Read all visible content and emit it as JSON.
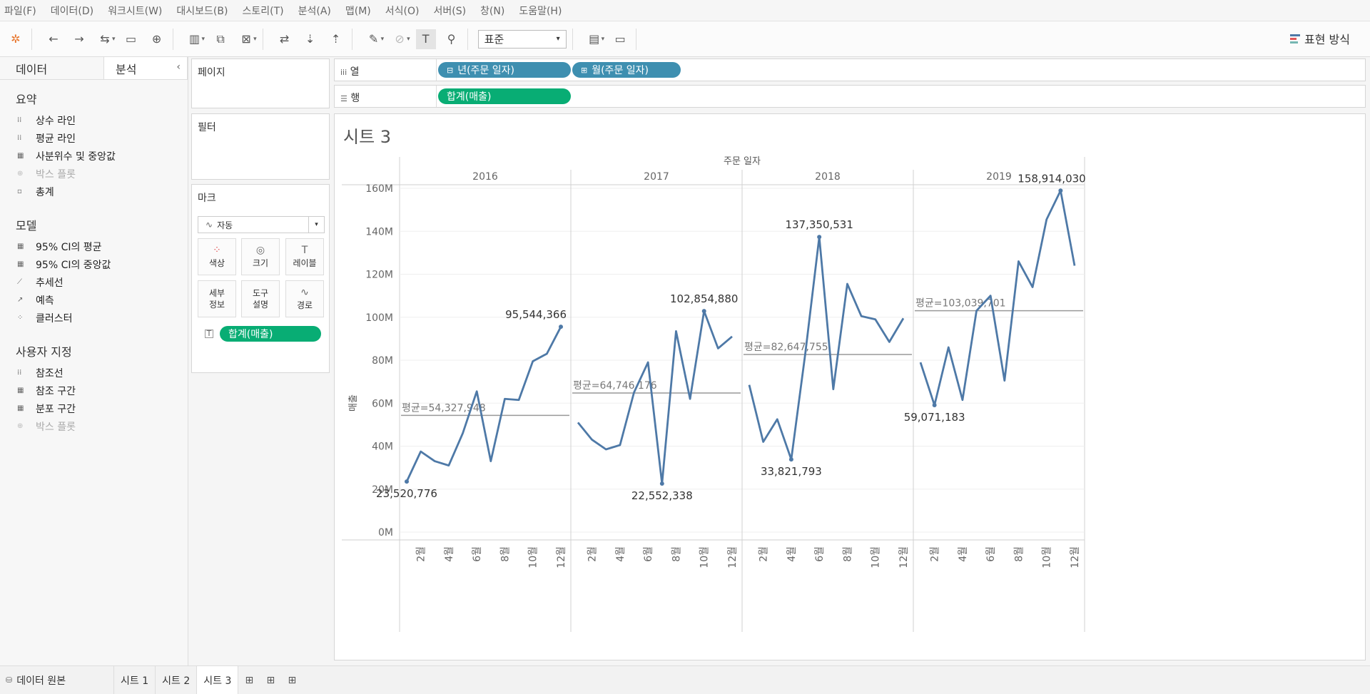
{
  "menu": [
    "파일(F)",
    "데이터(D)",
    "워크시트(W)",
    "대시보드(B)",
    "스토리(T)",
    "분석(A)",
    "맵(M)",
    "서식(O)",
    "서버(S)",
    "창(N)",
    "도움말(H)"
  ],
  "toolbar": {
    "fit_value": "표준",
    "show_me_label": "표현 방식"
  },
  "left_panel": {
    "tabs": [
      "데이터",
      "분석"
    ],
    "sections": [
      {
        "title": "요약",
        "items": [
          {
            "label": "상수 라인",
            "icon": "constant-line-icon",
            "enabled": true
          },
          {
            "label": "평균 라인",
            "icon": "average-line-icon",
            "enabled": true
          },
          {
            "label": "사분위수 및 중앙값",
            "icon": "quartile-icon",
            "enabled": true
          },
          {
            "label": "박스 플롯",
            "icon": "box-plot-icon",
            "enabled": false
          },
          {
            "label": "총계",
            "icon": "totals-icon",
            "enabled": true
          }
        ]
      },
      {
        "title": "모델",
        "items": [
          {
            "label": "95% CI의 평균",
            "icon": "ci-mean-icon",
            "enabled": true
          },
          {
            "label": "95% CI의 중앙값",
            "icon": "ci-median-icon",
            "enabled": true
          },
          {
            "label": "추세선",
            "icon": "trend-line-icon",
            "enabled": true
          },
          {
            "label": "예측",
            "icon": "forecast-icon",
            "enabled": true
          },
          {
            "label": "클러스터",
            "icon": "cluster-icon",
            "enabled": true
          }
        ]
      },
      {
        "title": "사용자 지정",
        "items": [
          {
            "label": "참조선",
            "icon": "reference-line-icon",
            "enabled": true
          },
          {
            "label": "참조 구간",
            "icon": "reference-band-icon",
            "enabled": true
          },
          {
            "label": "분포 구간",
            "icon": "distribution-band-icon",
            "enabled": true
          },
          {
            "label": "박스 플롯",
            "icon": "box-plot-icon",
            "enabled": false
          }
        ]
      }
    ]
  },
  "cards": {
    "pages": "페이지",
    "filters": "필터",
    "marks": {
      "title": "마크",
      "type": "자동",
      "buttons": [
        "색상",
        "크기",
        "레이블",
        "세부\n정보",
        "도구\n설명",
        "경로"
      ],
      "pill": "합계(매출)"
    }
  },
  "shelves": {
    "columns_label": "열",
    "rows_label": "행",
    "column_pills": [
      "년(주문 일자)",
      "월(주문 일자)"
    ],
    "row_pills": [
      "합계(매출)"
    ]
  },
  "sheet_title": "시트 3",
  "chart_data": {
    "type": "line",
    "title": "시트 3",
    "header": "주문 일자",
    "ylabel": "매출",
    "ylim": [
      0,
      170000000
    ],
    "y_ticks": [
      "0M",
      "20M",
      "40M",
      "60M",
      "80M",
      "100M",
      "120M",
      "140M",
      "160M"
    ],
    "x_tick_labels": [
      "2월",
      "4월",
      "6월",
      "8월",
      "10월",
      "12월"
    ],
    "line_color": "#4e79a7",
    "panes": [
      {
        "year": "2016",
        "avg_label": "평균=54,327,948",
        "avg": 54327948,
        "values": [
          23520776,
          37500000,
          33000000,
          31000000,
          46000000,
          65500000,
          33000000,
          62000000,
          61500000,
          79500000,
          83000000,
          95544366
        ],
        "labels": [
          {
            "month": 1,
            "text": "23,520,776",
            "pos": "below"
          },
          {
            "month": 12,
            "text": "95,544,366",
            "pos": "above-left"
          }
        ]
      },
      {
        "year": "2017",
        "avg_label": "평균=64,746,176",
        "avg": 64746176,
        "values": [
          51000000,
          43000000,
          38500000,
          40500000,
          65000000,
          79000000,
          22552338,
          93500000,
          62000000,
          102854880,
          85500000,
          91000000
        ],
        "labels": [
          {
            "month": 7,
            "text": "22,552,338",
            "pos": "below"
          },
          {
            "month": 10,
            "text": "102,854,880",
            "pos": "above"
          }
        ]
      },
      {
        "year": "2018",
        "avg_label": "평균=82,647,755",
        "avg": 82647755,
        "values": [
          68500000,
          42000000,
          52500000,
          33821793,
          83000000,
          137350531,
          66500000,
          115500000,
          100500000,
          99000000,
          88500000,
          99500000
        ],
        "labels": [
          {
            "month": 4,
            "text": "33,821,793",
            "pos": "below"
          },
          {
            "month": 6,
            "text": "137,350,531",
            "pos": "above"
          }
        ]
      },
      {
        "year": "2019",
        "avg_label": "평균=103,039,701",
        "avg": 103039701,
        "values": [
          79000000,
          59071183,
          86000000,
          61500000,
          103000000,
          110000000,
          70500000,
          126000000,
          114000000,
          145500000,
          158914030,
          124000000
        ],
        "labels": [
          {
            "month": 2,
            "text": "59,071,183",
            "pos": "below"
          },
          {
            "month": 11,
            "text": "158,914,030",
            "pos": "above"
          }
        ]
      }
    ]
  },
  "bottom_tabs": {
    "data_source": "데이터 원본",
    "sheets": [
      "시트 1",
      "시트 2",
      "시트 3"
    ],
    "active_sheet": "시트 3"
  }
}
